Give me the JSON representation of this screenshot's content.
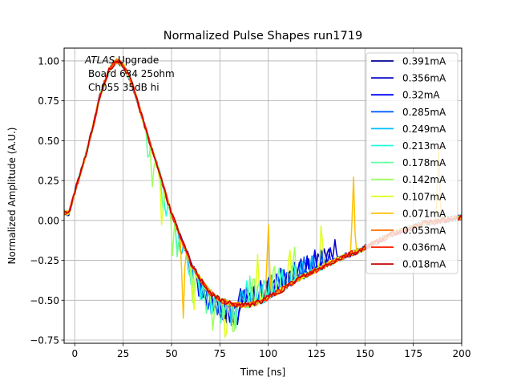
{
  "chart_data": {
    "type": "line",
    "title": "Normalized Pulse Shapes run1719",
    "xlabel": "Time [ns]",
    "ylabel": "Normalized Amplitude (A.U.)",
    "xlim": [
      -5.5,
      200
    ],
    "ylim": [
      -0.77,
      1.08
    ],
    "xticks": [
      0,
      25,
      50,
      75,
      100,
      125,
      150,
      175,
      200
    ],
    "xtick_labels": [
      "0",
      "25",
      "50",
      "75",
      "100",
      "125",
      "150",
      "175",
      "200"
    ],
    "yticks": [
      -0.75,
      -0.5,
      -0.25,
      0.0,
      0.25,
      0.5,
      0.75,
      1.0
    ],
    "ytick_labels": [
      "−0.75",
      "−0.50",
      "−0.25",
      "0.00",
      "0.25",
      "0.50",
      "0.75",
      "1.00"
    ],
    "grid": true,
    "legend_position": "top-right",
    "annotation": {
      "line1_italic": "ATLAS",
      "line1_rest": " Upgrade",
      "line2": "Board 634 25ohm",
      "line3": "Ch055 35dB hi"
    },
    "base_shape": {
      "description": "Common bipolar pulse: rise from ~0.05 at t=-5 to peak 1.0 at t~22, fall through zero at t~47, minimum ~-0.54 at t~85, recovery to ~0 by t~200",
      "x": [
        -5,
        -3,
        0,
        3,
        5,
        8,
        10,
        13,
        15,
        18,
        20,
        22,
        25,
        28,
        30,
        33,
        35,
        38,
        40,
        43,
        45,
        48,
        50,
        53,
        55,
        58,
        60,
        63,
        65,
        68,
        70,
        73,
        75,
        78,
        80,
        83,
        85,
        88,
        90,
        93,
        95,
        98,
        100,
        105,
        110,
        115,
        120,
        125,
        130,
        135,
        140,
        145,
        150,
        155,
        160,
        165,
        170,
        175,
        180,
        185,
        190,
        195,
        200
      ],
      "y": [
        0.05,
        0.04,
        0.18,
        0.3,
        0.38,
        0.52,
        0.62,
        0.78,
        0.85,
        0.95,
        0.98,
        1.0,
        0.97,
        0.9,
        0.84,
        0.72,
        0.64,
        0.52,
        0.44,
        0.33,
        0.25,
        0.12,
        0.05,
        -0.05,
        -0.12,
        -0.2,
        -0.27,
        -0.33,
        -0.37,
        -0.42,
        -0.45,
        -0.48,
        -0.5,
        -0.51,
        -0.52,
        -0.53,
        -0.53,
        -0.53,
        -0.53,
        -0.52,
        -0.51,
        -0.5,
        -0.48,
        -0.45,
        -0.41,
        -0.37,
        -0.34,
        -0.31,
        -0.28,
        -0.25,
        -0.22,
        -0.2,
        -0.17,
        -0.14,
        -0.11,
        -0.08,
        -0.06,
        -0.04,
        -0.02,
        -0.01,
        0.0,
        0.01,
        0.02
      ]
    },
    "series": [
      {
        "name": "0.391mA",
        "color": "#00008f",
        "spike_start": 66,
        "spike_period": 3.0,
        "spike_amp": 0.12,
        "spike_count": 22,
        "spike_dir_switch": 85
      },
      {
        "name": "0.356mA",
        "color": "#0000c8",
        "spike_start": 68,
        "spike_period": 3.5,
        "spike_amp": 0.13,
        "spike_count": 20,
        "spike_dir_switch": 85
      },
      {
        "name": "0.32mA",
        "color": "#0000ff",
        "spike_start": 64,
        "spike_period": 4.0,
        "spike_amp": 0.12,
        "spike_count": 18,
        "spike_dir_switch": 85
      },
      {
        "name": "0.285mA",
        "color": "#0060ff",
        "spike_start": 60,
        "spike_period": 4.5,
        "spike_amp": 0.12,
        "spike_count": 16,
        "spike_dir_switch": 85
      },
      {
        "name": "0.249mA",
        "color": "#00c0ff",
        "spike_start": 55,
        "spike_period": 5.2,
        "spike_amp": 0.13,
        "spike_count": 14,
        "spike_dir_switch": 85
      },
      {
        "name": "0.213mA",
        "color": "#20ffe0",
        "spike_start": 47,
        "spike_period": 6.0,
        "spike_amp": 0.15,
        "spike_count": 12,
        "spike_dir_switch": 85
      },
      {
        "name": "0.178mA",
        "color": "#60ff9f",
        "spike_start": 38,
        "spike_period": 7.5,
        "spike_amp": 0.18,
        "spike_count": 10,
        "spike_dir_switch": 85
      },
      {
        "name": "0.142mA",
        "color": "#a0ff60",
        "spike_start": 40,
        "spike_period": 10.5,
        "spike_amp": 0.25,
        "spike_count": 8,
        "spike_dir_switch": 85
      },
      {
        "name": "0.107mA",
        "color": "#e0ff20",
        "spike_start": 45,
        "spike_period": 16.5,
        "spike_amp": 0.3,
        "spike_count": 6,
        "spike_dir_switch": 85
      },
      {
        "name": "0.071mA",
        "color": "#ffc000",
        "spike_start": 56,
        "spike_period": 44.0,
        "spike_amp": 0.5,
        "spike_count": 4,
        "spike_dir_switch": 85
      },
      {
        "name": "0.053mA",
        "color": "#ff7000",
        "spike_start": 0,
        "spike_period": 0,
        "spike_amp": 0.0,
        "spike_count": 0,
        "spike_dir_switch": 85
      },
      {
        "name": "0.036mA",
        "color": "#ff2000",
        "spike_start": 0,
        "spike_period": 0,
        "spike_amp": 0.0,
        "spike_count": 0,
        "spike_dir_switch": 85
      },
      {
        "name": "0.018mA",
        "color": "#c80000",
        "spike_start": 0,
        "spike_period": 0,
        "spike_amp": 0.0,
        "spike_count": 0,
        "spike_dir_switch": 85
      }
    ]
  }
}
